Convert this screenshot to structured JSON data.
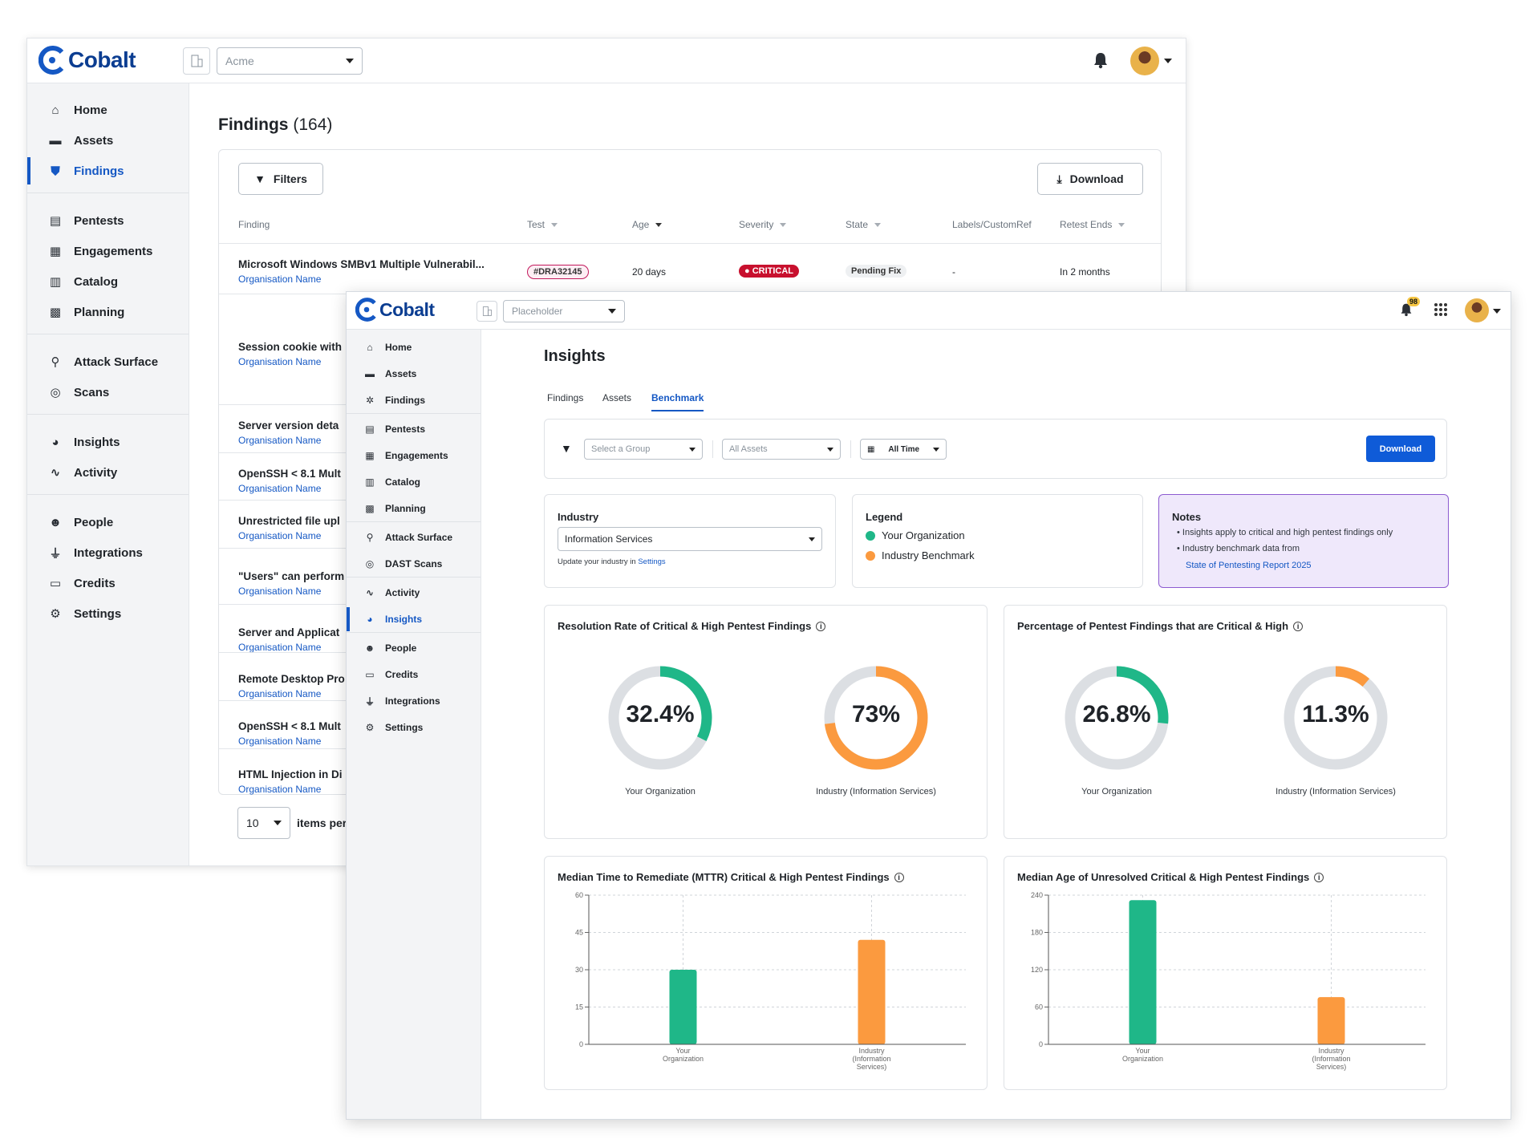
{
  "back": {
    "brand": "Cobalt",
    "org_select": "Acme",
    "sidebar": {
      "items": [
        {
          "label": "Home",
          "icon": "home-icon"
        },
        {
          "label": "Assets",
          "icon": "folder-icon"
        },
        {
          "label": "Findings",
          "icon": "shield-icon",
          "active": true
        },
        {
          "label": "Pentests",
          "icon": "pentest-icon"
        },
        {
          "label": "Engagements",
          "icon": "engagement-icon"
        },
        {
          "label": "Catalog",
          "icon": "catalog-icon"
        },
        {
          "label": "Planning",
          "icon": "calendar-icon"
        },
        {
          "label": "Attack Surface",
          "icon": "sitemap-icon"
        },
        {
          "label": "Scans",
          "icon": "target-icon"
        },
        {
          "label": "Insights",
          "icon": "pie-icon"
        },
        {
          "label": "Activity",
          "icon": "pulse-icon"
        },
        {
          "label": "People",
          "icon": "people-icon"
        },
        {
          "label": "Integrations",
          "icon": "plug-icon"
        },
        {
          "label": "Credits",
          "icon": "wallet-icon"
        },
        {
          "label": "Settings",
          "icon": "gear-icon"
        }
      ]
    },
    "page_title": "Findings",
    "page_count": "(164)",
    "filters_label": "Filters",
    "download_label": "Download",
    "columns": [
      "Finding",
      "Test",
      "Age",
      "Severity",
      "State",
      "Labels/CustomRef",
      "Retest Ends"
    ],
    "first_row": {
      "title": "Microsoft Windows SMBv1 Multiple Vulnerabil...",
      "org": "Organisation Name",
      "test": "#DRA32145",
      "age": "20 days",
      "severity": "CRITICAL",
      "state": "Pending Fix",
      "labels": "-",
      "retest": "In 2 months"
    },
    "rows": [
      {
        "title": "Session cookie with",
        "org": "Organisation Name"
      },
      {
        "title": "Server version deta",
        "org": "Organisation Name"
      },
      {
        "title": "OpenSSH < 8.1 Mult",
        "org": "Organisation Name"
      },
      {
        "title": "Unrestricted file upl",
        "org": "Organisation Name"
      },
      {
        "title": "\"Users\" can perform",
        "org": "Organisation Name"
      },
      {
        "title": "Server and Applicat",
        "org": "Organisation Name"
      },
      {
        "title": "Remote Desktop Pro",
        "org": "Organisation Name"
      },
      {
        "title": "OpenSSH < 8.1 Mult",
        "org": "Organisation Name"
      },
      {
        "title": "HTML Injection in Di",
        "org": "Organisation Name"
      }
    ],
    "page_size": "10",
    "items_per": "items per"
  },
  "front": {
    "brand": "Cobalt",
    "org_select": "Placeholder",
    "notif_count": "98",
    "sidebar": {
      "items": [
        {
          "label": "Home",
          "icon": "home-icon"
        },
        {
          "label": "Assets",
          "icon": "folder-icon"
        },
        {
          "label": "Findings",
          "icon": "bug-icon"
        },
        {
          "label": "Pentests",
          "icon": "pentest-icon"
        },
        {
          "label": "Engagements",
          "icon": "engagement-icon"
        },
        {
          "label": "Catalog",
          "icon": "catalog-icon"
        },
        {
          "label": "Planning",
          "icon": "calendar-icon"
        },
        {
          "label": "Attack Surface",
          "icon": "sitemap-icon"
        },
        {
          "label": "DAST Scans",
          "icon": "target-icon"
        },
        {
          "label": "Activity",
          "icon": "pulse-icon"
        },
        {
          "label": "Insights",
          "icon": "pie-icon",
          "active": true
        },
        {
          "label": "People",
          "icon": "people-icon"
        },
        {
          "label": "Credits",
          "icon": "wallet-icon"
        },
        {
          "label": "Integrations",
          "icon": "plug-icon"
        },
        {
          "label": "Settings",
          "icon": "gear-icon"
        }
      ]
    },
    "page_title": "Insights",
    "tabs": [
      "Findings",
      "Assets",
      "Benchmark"
    ],
    "active_tab": "Benchmark",
    "filters": {
      "group": "Select a Group",
      "assets": "All Assets",
      "time": "All Time"
    },
    "download_label": "Download",
    "industry": {
      "heading": "Industry",
      "value": "Information Services",
      "hint": "Update your industry in",
      "hint_link": "Settings"
    },
    "legend": {
      "heading": "Legend",
      "items": [
        {
          "label": "Your Organization",
          "color": "#1fb788"
        },
        {
          "label": "Industry Benchmark",
          "color": "#fb9a3f"
        }
      ]
    },
    "notes": {
      "heading": "Notes",
      "items": [
        "Insights apply to critical and high pentest findings only",
        "Industry benchmark data from"
      ],
      "link": "State of Pentesting Report 2025"
    },
    "donut_cards": [
      {
        "title": "Resolution Rate of Critical & High Pentest Findings",
        "donuts": [
          {
            "value": "32.4%",
            "fraction": 0.324,
            "label": "Your Organization",
            "color": "#1fb788"
          },
          {
            "value": "73%",
            "fraction": 0.73,
            "label": "Industry (Information Services)",
            "color": "#fb9a3f"
          }
        ]
      },
      {
        "title": "Percentage of Pentest Findings that are Critical & High",
        "donuts": [
          {
            "value": "26.8%",
            "fraction": 0.268,
            "label": "Your Organization",
            "color": "#1fb788"
          },
          {
            "value": "11.3%",
            "fraction": 0.113,
            "label": "Industry (Information Services)",
            "color": "#fb9a3f"
          }
        ]
      }
    ]
  },
  "chart_data": [
    {
      "type": "bar",
      "title": "Median Time to Remediate (MTTR) Critical & High Pentest Findings",
      "categories": [
        "Your Organization",
        "Industry (Information Services)"
      ],
      "values": [
        30,
        42
      ],
      "colors": [
        "#1fb788",
        "#fb9a3f"
      ],
      "ylim": [
        0,
        60
      ],
      "yticks": [
        0,
        15,
        30,
        45,
        60
      ],
      "grid": true
    },
    {
      "type": "bar",
      "title": "Median Age of Unresolved Critical & High Pentest Findings",
      "categories": [
        "Your Organization",
        "Industry (Information Services)"
      ],
      "values": [
        232,
        76
      ],
      "colors": [
        "#1fb788",
        "#fb9a3f"
      ],
      "ylim": [
        0,
        240
      ],
      "yticks": [
        0,
        60,
        120,
        180,
        240
      ],
      "grid": true
    }
  ]
}
